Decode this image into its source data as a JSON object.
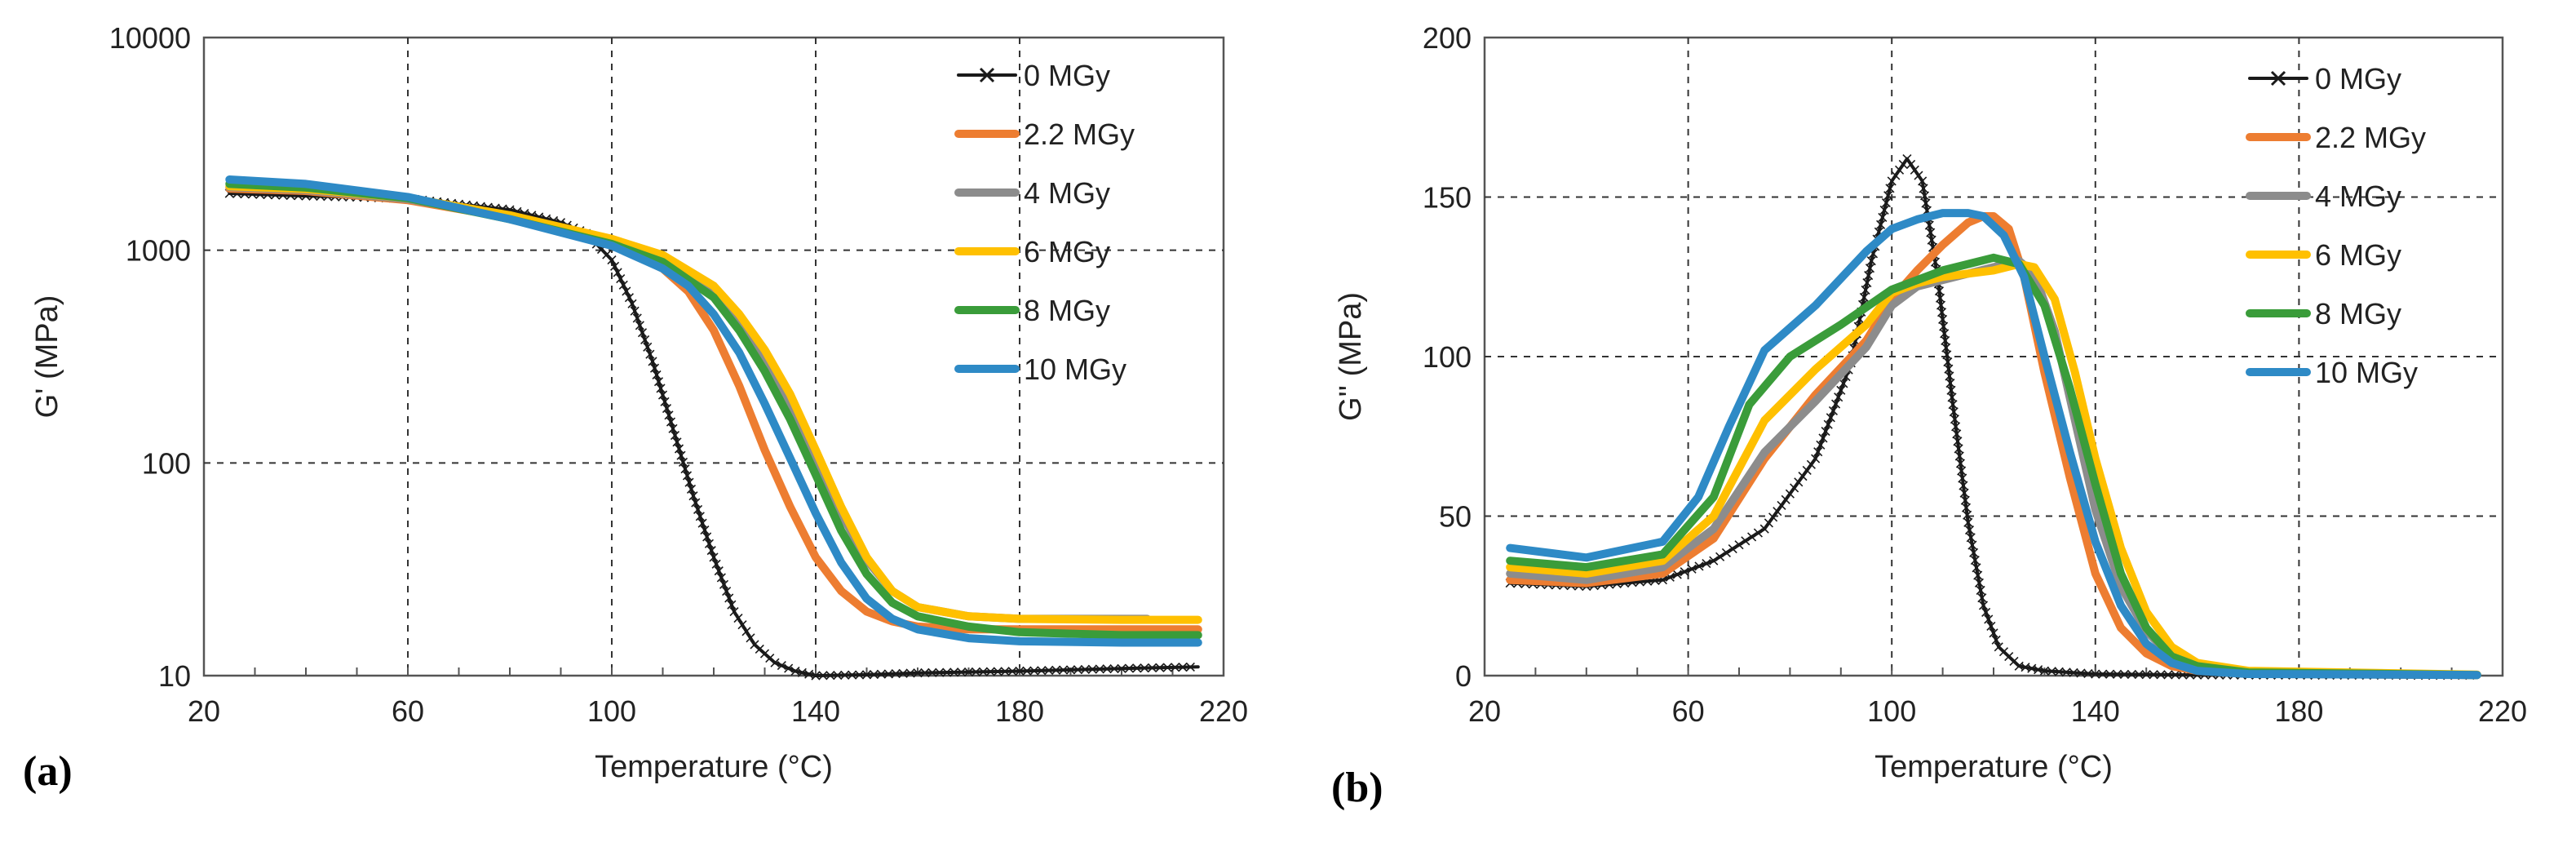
{
  "chart_data": [
    {
      "type": "line",
      "panel_label": "(a)",
      "xlabel": "Temperature (°C)",
      "ylabel": "G' (MPa)",
      "xlim": [
        20,
        220
      ],
      "xticks": [
        20,
        60,
        100,
        140,
        180,
        220
      ],
      "ylim": [
        10,
        10000
      ],
      "yscale": "log",
      "yticks": [
        10,
        100,
        1000,
        10000
      ],
      "ytick_labels": [
        "10",
        "100",
        "1000",
        "10000"
      ],
      "grid": "dashed",
      "legend_position": "top-right",
      "series": [
        {
          "name": "0 MGy",
          "color": "#1a1a1a",
          "marker": "x",
          "x": [
            25,
            40,
            60,
            80,
            90,
            95,
            100,
            104,
            108,
            112,
            116,
            120,
            124,
            128,
            132,
            136,
            140,
            150,
            160,
            180,
            200,
            215
          ],
          "y": [
            1850,
            1800,
            1750,
            1550,
            1350,
            1200,
            900,
            560,
            300,
            145,
            70,
            36,
            20,
            14,
            11.5,
            10.5,
            10,
            10.1,
            10.3,
            10.5,
            10.8,
            11
          ]
        },
        {
          "name": "2.2 MGy",
          "color": "#ed7d31",
          "x": [
            25,
            40,
            60,
            80,
            100,
            110,
            115,
            120,
            125,
            130,
            135,
            140,
            145,
            150,
            155,
            160,
            170,
            180,
            200,
            215
          ],
          "y": [
            1950,
            1900,
            1720,
            1420,
            1080,
            820,
            640,
            420,
            230,
            115,
            62,
            36,
            25,
            20,
            18,
            17,
            16.5,
            16.5,
            16.5,
            16.5
          ]
        },
        {
          "name": "4 MGy",
          "color": "#8c8c8c",
          "x": [
            25,
            40,
            60,
            80,
            100,
            110,
            120,
            125,
            130,
            135,
            140,
            145,
            150,
            155,
            160,
            170,
            180,
            200,
            205
          ],
          "y": [
            1980,
            1920,
            1740,
            1440,
            1100,
            900,
            620,
            460,
            300,
            180,
            100,
            58,
            35,
            25,
            21,
            19,
            18.5,
            18.5,
            18.5
          ]
        },
        {
          "name": "6 MGy",
          "color": "#ffc000",
          "x": [
            25,
            40,
            60,
            80,
            100,
            110,
            120,
            125,
            130,
            135,
            140,
            145,
            150,
            155,
            160,
            170,
            180,
            200,
            215
          ],
          "y": [
            2000,
            1940,
            1760,
            1460,
            1130,
            950,
            680,
            500,
            340,
            210,
            115,
            62,
            36,
            25,
            21,
            19,
            18.5,
            18.3,
            18.3
          ]
        },
        {
          "name": "8 MGy",
          "color": "#3a9c3a",
          "x": [
            25,
            40,
            60,
            80,
            100,
            110,
            120,
            125,
            130,
            135,
            140,
            145,
            150,
            155,
            160,
            170,
            180,
            200,
            215
          ],
          "y": [
            2050,
            1970,
            1760,
            1400,
            1070,
            880,
            600,
            420,
            270,
            160,
            88,
            48,
            30,
            22,
            19,
            17,
            16,
            15.5,
            15.5
          ]
        },
        {
          "name": "10 MGy",
          "color": "#2e8ac6",
          "x": [
            25,
            40,
            60,
            80,
            100,
            110,
            115,
            120,
            125,
            130,
            135,
            140,
            145,
            150,
            155,
            160,
            170,
            180,
            200,
            215
          ],
          "y": [
            2150,
            2050,
            1780,
            1400,
            1050,
            820,
            680,
            500,
            330,
            190,
            105,
            58,
            34,
            23,
            18.5,
            16.5,
            15,
            14.5,
            14.3,
            14.3
          ]
        }
      ]
    },
    {
      "type": "line",
      "panel_label": "(b)",
      "xlabel": "Temperature (°C)",
      "ylabel": "G'' (MPa)",
      "xlim": [
        20,
        220
      ],
      "xticks": [
        20,
        60,
        100,
        140,
        180,
        220
      ],
      "ylim": [
        0,
        200
      ],
      "yscale": "linear",
      "yticks": [
        0,
        50,
        100,
        150,
        200
      ],
      "ytick_labels": [
        "0",
        "50",
        "100",
        "150",
        "200"
      ],
      "grid": "dashed",
      "legend_position": "top-right",
      "series": [
        {
          "name": "0 MGy",
          "color": "#1a1a1a",
          "marker": "x",
          "x": [
            25,
            40,
            55,
            65,
            75,
            85,
            92,
            96,
            100,
            103,
            106,
            109,
            112,
            115,
            118,
            121,
            125,
            130,
            140,
            160,
            215
          ],
          "y": [
            29,
            28,
            30,
            36,
            46,
            68,
            98,
            130,
            155,
            162,
            155,
            125,
            85,
            48,
            22,
            9,
            3,
            1.5,
            0.5,
            0.2,
            0.1
          ]
        },
        {
          "name": "2.2 MGy",
          "color": "#ed7d31",
          "x": [
            25,
            40,
            55,
            65,
            75,
            85,
            95,
            100,
            105,
            110,
            115,
            118,
            120,
            123,
            126,
            130,
            135,
            140,
            145,
            150,
            155,
            160,
            170,
            215
          ],
          "y": [
            30,
            29,
            32,
            43,
            68,
            88,
            105,
            118,
            127,
            135,
            142,
            144,
            144,
            140,
            125,
            95,
            62,
            32,
            15,
            7,
            3,
            1.5,
            0.6,
            0.2
          ]
        },
        {
          "name": "4 MGy",
          "color": "#8c8c8c",
          "x": [
            25,
            40,
            55,
            65,
            75,
            85,
            95,
            100,
            105,
            110,
            115,
            120,
            125,
            128,
            132,
            136,
            140,
            145,
            150,
            155,
            160,
            170,
            215
          ],
          "y": [
            32,
            30,
            34,
            46,
            70,
            86,
            103,
            116,
            122,
            124,
            126,
            128,
            130,
            126,
            108,
            80,
            52,
            28,
            14,
            6,
            3,
            1,
            0.2
          ]
        },
        {
          "name": "6 MGy",
          "color": "#ffc000",
          "x": [
            25,
            40,
            55,
            65,
            75,
            85,
            95,
            100,
            105,
            110,
            115,
            120,
            125,
            128,
            132,
            136,
            140,
            145,
            150,
            155,
            160,
            170,
            215
          ],
          "y": [
            34,
            32,
            36,
            50,
            80,
            96,
            110,
            120,
            123,
            125,
            126,
            127,
            129,
            128,
            118,
            95,
            68,
            40,
            20,
            9,
            4,
            1.5,
            0.3
          ]
        },
        {
          "name": "8 MGy",
          "color": "#3a9c3a",
          "x": [
            25,
            40,
            55,
            65,
            72,
            80,
            90,
            100,
            110,
            115,
            120,
            125,
            130,
            135,
            140,
            145,
            150,
            155,
            160,
            170,
            215
          ],
          "y": [
            36,
            34,
            38,
            56,
            85,
            100,
            110,
            121,
            127,
            129,
            131,
            129,
            116,
            90,
            60,
            32,
            15,
            6,
            3,
            1,
            0.2
          ]
        },
        {
          "name": "10 MGy",
          "color": "#2e8ac6",
          "x": [
            25,
            40,
            55,
            62,
            68,
            75,
            85,
            95,
            100,
            105,
            110,
            115,
            118,
            122,
            126,
            130,
            135,
            140,
            145,
            150,
            155,
            160,
            170,
            215
          ],
          "y": [
            40,
            37,
            42,
            56,
            78,
            102,
            116,
            133,
            140,
            143,
            145,
            145,
            144,
            138,
            125,
            100,
            70,
            42,
            22,
            10,
            4,
            1.5,
            0.5,
            0.2
          ]
        }
      ]
    }
  ]
}
